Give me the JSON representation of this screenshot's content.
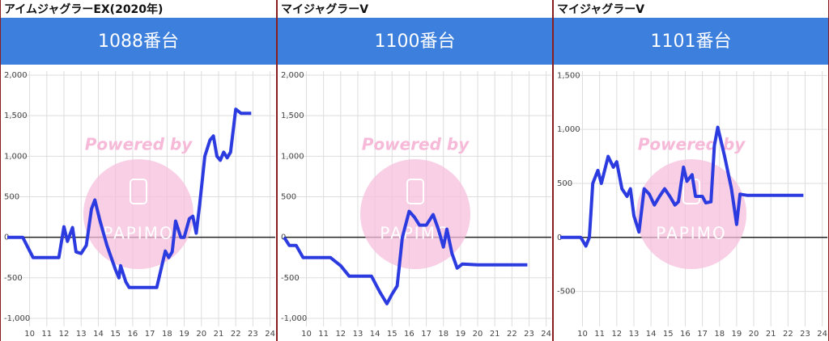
{
  "chart_data": [
    {
      "type": "line",
      "title": "アイムジャグラーEX(2020年)",
      "subtitle": "1088番台",
      "watermark": "Powered by",
      "logo": "PAPIMO",
      "color": "#2b3be0",
      "grid": true,
      "x": [
        8.7,
        9.6,
        10.2,
        11.7,
        12.0,
        12.2,
        12.5,
        12.7,
        13.0,
        13.3,
        13.6,
        13.8,
        14.1,
        14.5,
        15.0,
        15.2,
        15.3,
        15.6,
        15.8,
        16.5,
        17.4,
        17.9,
        18.1,
        18.3,
        18.5,
        18.8,
        19.0,
        19.3,
        19.5,
        19.7,
        19.9,
        20.2,
        20.5,
        20.7,
        20.9,
        21.1,
        21.3,
        21.5,
        21.7,
        22.0,
        22.3,
        22.9
      ],
      "values": [
        0,
        0,
        -250,
        -250,
        130,
        -50,
        120,
        -180,
        -200,
        -100,
        350,
        460,
        200,
        -100,
        -400,
        -500,
        -350,
        -550,
        -620,
        -620,
        -620,
        -170,
        -250,
        -180,
        200,
        0,
        0,
        230,
        260,
        50,
        400,
        1000,
        1200,
        1250,
        1000,
        950,
        1050,
        980,
        1050,
        1580,
        1530,
        1530
      ],
      "xlim": [
        8.7,
        24.3
      ],
      "xticks": [
        10,
        11,
        12,
        13,
        14,
        15,
        16,
        17,
        18,
        19,
        20,
        21,
        22,
        23,
        24
      ],
      "ylim": [
        -1100,
        2050
      ],
      "yticks": [
        {
          "value": -1000,
          "label": "-1,000"
        },
        -500,
        0,
        500,
        {
          "value": 1000,
          "label": "1,000"
        },
        {
          "value": 1500,
          "label": "1,500"
        },
        {
          "value": 2000,
          "label": "2,000"
        }
      ]
    },
    {
      "type": "line",
      "title": "マイジャグラーV",
      "subtitle": "1100番台",
      "watermark": "Powered by",
      "logo": "PAPIMO",
      "color": "#2b3be0",
      "grid": true,
      "x": [
        8.7,
        9.0,
        9.4,
        9.8,
        11.4,
        12.0,
        12.5,
        13.8,
        14.3,
        14.7,
        15.0,
        15.3,
        15.6,
        16.0,
        16.3,
        16.6,
        17.0,
        17.4,
        17.7,
        18.0,
        18.2,
        18.5,
        18.8,
        19.1,
        20.0,
        22.9
      ],
      "values": [
        0,
        -100,
        -100,
        -250,
        -250,
        -350,
        -480,
        -480,
        -680,
        -820,
        -700,
        -600,
        0,
        320,
        250,
        150,
        150,
        280,
        100,
        -120,
        100,
        -200,
        -380,
        -330,
        -340,
        -340
      ],
      "xlim": [
        8.7,
        24.3
      ],
      "xticks": [
        10,
        11,
        12,
        13,
        14,
        15,
        16,
        17,
        18,
        19,
        20,
        21,
        22,
        23,
        24
      ],
      "ylim": [
        -1100,
        2050
      ],
      "yticks": [
        {
          "value": -1000,
          "label": "-1,000"
        },
        -500,
        0,
        500,
        {
          "value": 1000,
          "label": "1,000"
        },
        {
          "value": 1500,
          "label": "1,500"
        },
        {
          "value": 2000,
          "label": "2,000"
        }
      ]
    },
    {
      "type": "line",
      "title": "マイジャグラーV",
      "subtitle": "1101番台",
      "watermark": "Powered by",
      "logo": "PAPIMO",
      "color": "#2b3be0",
      "grid": true,
      "x": [
        8.7,
        9.9,
        10.2,
        10.4,
        10.6,
        10.9,
        11.1,
        11.5,
        11.8,
        12.0,
        12.3,
        12.6,
        12.8,
        13.0,
        13.3,
        13.6,
        13.9,
        14.2,
        14.5,
        14.8,
        15.1,
        15.4,
        15.6,
        15.9,
        16.1,
        16.4,
        16.6,
        17.0,
        17.2,
        17.5,
        17.7,
        17.9,
        18.3,
        18.7,
        19.0,
        19.2,
        19.6,
        22.9
      ],
      "values": [
        0,
        0,
        -80,
        0,
        500,
        620,
        500,
        750,
        650,
        700,
        450,
        380,
        450,
        200,
        50,
        450,
        400,
        300,
        380,
        450,
        380,
        300,
        330,
        650,
        520,
        580,
        380,
        380,
        320,
        330,
        850,
        1020,
        750,
        450,
        120,
        400,
        390,
        390
      ],
      "xlim": [
        8.7,
        24.3
      ],
      "xticks": [
        10,
        11,
        12,
        13,
        14,
        15,
        16,
        17,
        18,
        19,
        20,
        21,
        22,
        23,
        24
      ],
      "ylim": [
        -825,
        1540
      ],
      "yticks": [
        -500,
        0,
        500,
        {
          "value": 1000,
          "label": "1,000"
        },
        {
          "value": 1500,
          "label": "1,500"
        }
      ]
    }
  ]
}
